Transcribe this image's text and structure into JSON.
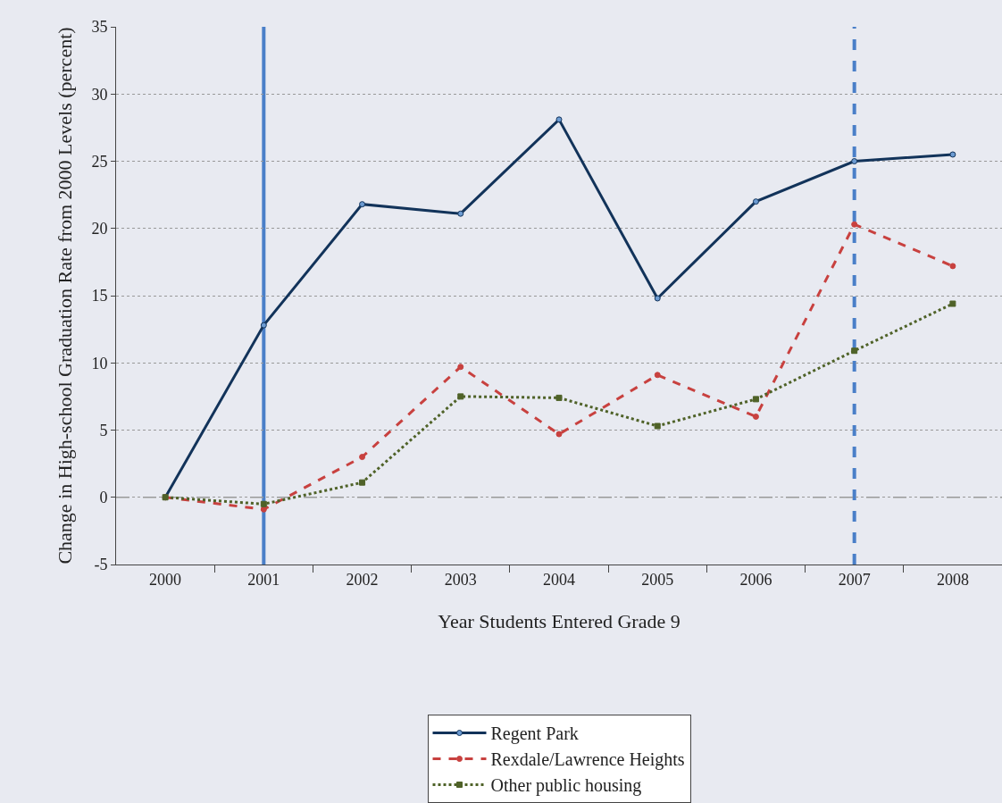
{
  "chart_data": {
    "type": "line",
    "xlabel": "Year Students Entered Grade 9",
    "ylabel": "Change in High-school Graduation Rate from 2000 Levels (percent)",
    "categories": [
      "2000",
      "2001",
      "2002",
      "2003",
      "2004",
      "2005",
      "2006",
      "2007",
      "2008"
    ],
    "series": [
      {
        "name": "Regent Park",
        "color": "#12335a",
        "line_style": "solid",
        "marker": "circle",
        "values": [
          0,
          12.8,
          21.8,
          21.1,
          28.1,
          14.8,
          22.0,
          25.0,
          25.5
        ]
      },
      {
        "name": "Rexdale/Lawrence Heights",
        "color": "#c8413f",
        "line_style": "dashed",
        "marker": "circle",
        "values": [
          0,
          -0.9,
          3.0,
          9.7,
          4.7,
          9.1,
          6.0,
          20.3,
          17.2
        ]
      },
      {
        "name": "Other public housing",
        "color": "#4f6228",
        "line_style": "dotted",
        "marker": "square",
        "values": [
          0,
          -0.5,
          1.1,
          7.5,
          7.4,
          5.3,
          7.3,
          10.9,
          14.4
        ]
      }
    ],
    "ylim": [
      -5,
      35
    ],
    "yticks": [
      -5,
      0,
      5,
      10,
      15,
      20,
      25,
      30,
      35
    ],
    "ref_lines": [
      {
        "axis": "x",
        "value": "2001",
        "color": "#4a7fc8",
        "line_style": "solid"
      },
      {
        "axis": "x",
        "value": "2007",
        "color": "#4a7fc8",
        "line_style": "dashed"
      },
      {
        "axis": "y",
        "value": 0,
        "color": "#999999",
        "line_style": "longdash"
      }
    ],
    "grid": "y",
    "legend": "bottom"
  }
}
